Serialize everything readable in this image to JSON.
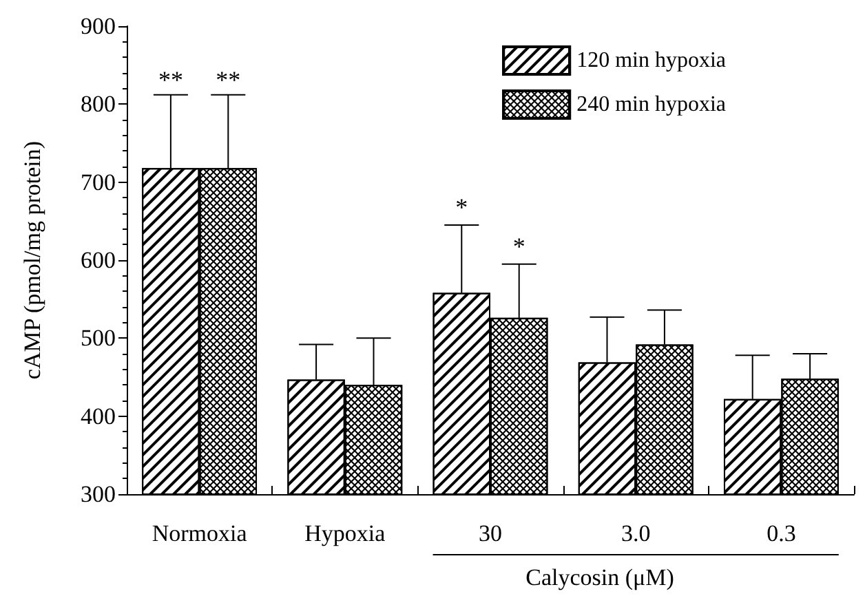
{
  "chart_data": {
    "type": "bar",
    "ylabel": "cAMP (pmol/mg protein)",
    "categories": [
      "Normoxia",
      "Hypoxia",
      "30",
      "3.0",
      "0.3"
    ],
    "series": [
      {
        "name": "120 min hypoxia",
        "color": "#ffffff",
        "values": [
          718,
          447,
          558,
          469,
          422
        ],
        "value_labels": [
          "**",
          null,
          null,
          null,
          null
        ],
        "errors": [
          [
            718,
            812
          ],
          [
            447,
            492
          ],
          [
            558,
            645
          ],
          [
            469,
            527
          ],
          [
            422,
            478
          ]
        ]
      },
      {
        "name": "240 min hypoxia",
        "color": "#ffffff",
        "values": [
          718,
          440,
          526,
          492,
          448
        ],
        "value_labels": [
          "**",
          null,
          null,
          null,
          null
        ],
        "errors": [
          [
            718,
            812
          ],
          [
            440,
            500
          ],
          [
            526,
            595
          ],
          [
            492,
            536
          ],
          [
            448,
            480
          ]
        ]
      }
    ],
    "ylim": [
      300,
      900
    ],
    "yticks": [
      300,
      400,
      500,
      600,
      700,
      800,
      900
    ],
    "grid": false,
    "legend": "top right",
    "annotations": [
      "*",
      "*",
      "Calycosin (μM)"
    ]
  }
}
